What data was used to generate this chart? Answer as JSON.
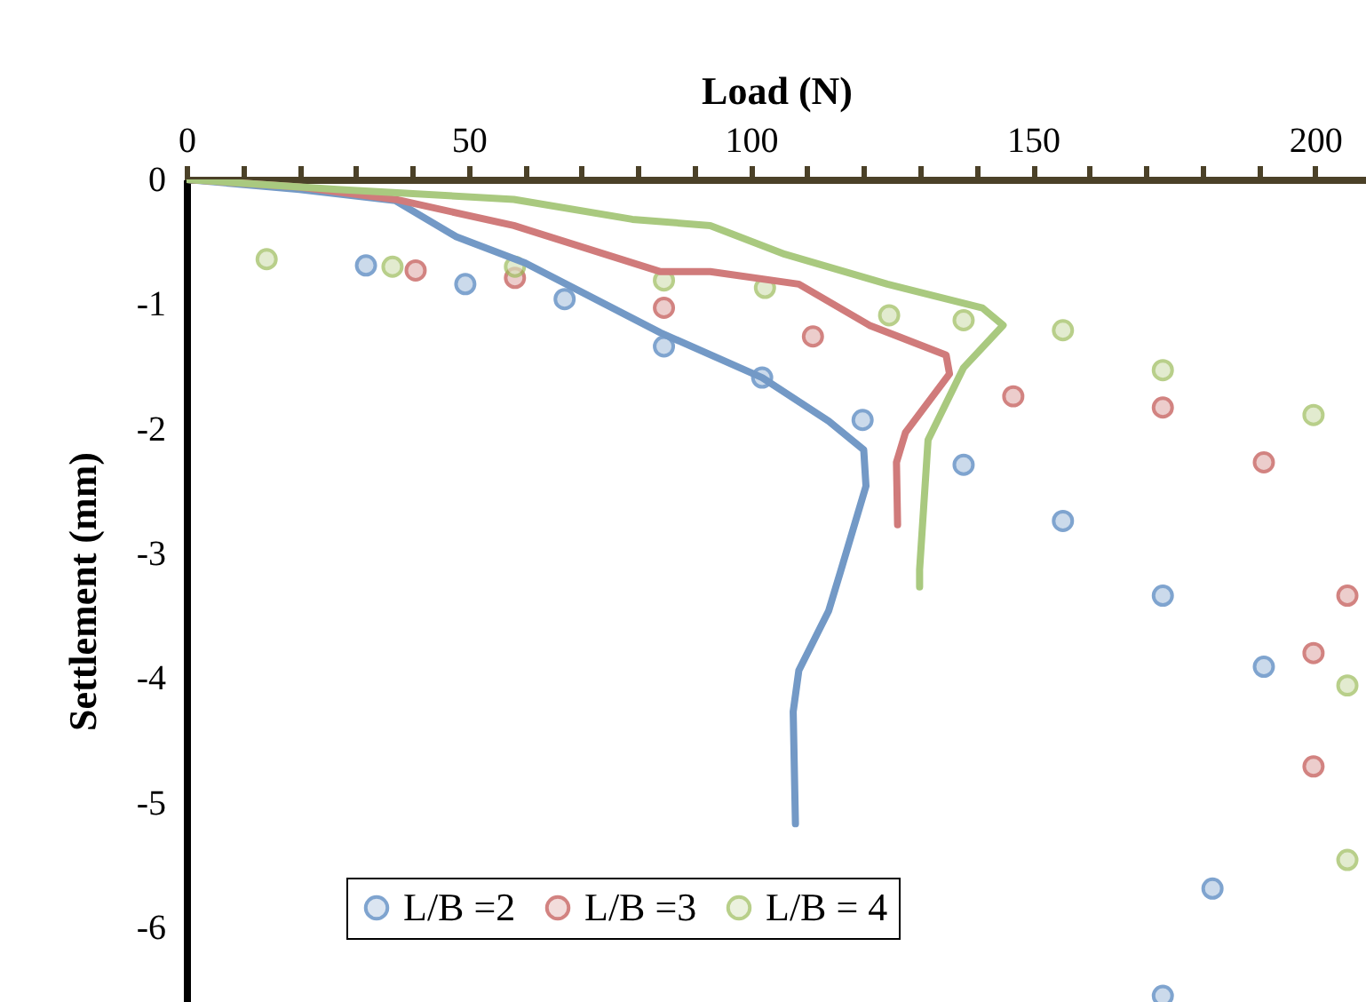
{
  "chart_data": {
    "type": "scatter",
    "xlabel": "Load (N)",
    "ylabel": "Settlement (mm)",
    "xlim": [
      0,
      209
    ],
    "ylim": [
      -6.6,
      0
    ],
    "xticks": [
      0,
      {
        "value": 10,
        "label": null
      },
      {
        "value": 20,
        "label": null
      },
      {
        "value": 30,
        "label": null
      },
      {
        "value": 40,
        "label": null
      },
      50,
      {
        "value": 60,
        "label": null
      },
      {
        "value": 70,
        "label": null
      },
      {
        "value": 80,
        "label": null
      },
      {
        "value": 90,
        "label": null
      },
      100,
      {
        "value": 110,
        "label": null
      },
      {
        "value": 120,
        "label": null
      },
      {
        "value": 130,
        "label": null
      },
      {
        "value": 140,
        "label": null
      },
      150,
      {
        "value": 160,
        "label": null
      },
      {
        "value": 170,
        "label": null
      },
      {
        "value": 180,
        "label": null
      },
      {
        "value": 190,
        "label": null
      },
      200
    ],
    "yticks": [
      0,
      -1,
      -2,
      -3,
      -4,
      -5,
      -6
    ],
    "grid": false,
    "legend": "bottom",
    "marker": "circle",
    "line_style": "solid",
    "series": [
      {
        "name": "L/B =2",
        "color": "#4a7ebb",
        "x": [
          31.8,
          49.4,
          67,
          84.6,
          102,
          119.8,
          137.7,
          155.3,
          173,
          190.9,
          181.8,
          173
        ],
        "values": [
          -0.69,
          -0.84,
          -0.96,
          -1.34,
          -1.59,
          -1.93,
          -2.29,
          -2.74,
          -3.34,
          -3.91,
          -5.69,
          -6.55
        ]
      },
      {
        "name": "L/B =3",
        "color": "#c0504d",
        "x": [
          40.6,
          58.2,
          84.6,
          111,
          146.5,
          173,
          190.9,
          205.7,
          199.7,
          199.7
        ],
        "values": [
          -0.73,
          -0.79,
          -1.03,
          -1.26,
          -1.74,
          -1.83,
          -2.27,
          -3.34,
          -3.8,
          -4.71
        ]
      },
      {
        "name": "L/B = 4",
        "color": "#9bbb59",
        "x": [
          14.2,
          36.5,
          58.2,
          84.6,
          102.5,
          124.5,
          137.7,
          155.3,
          173,
          199.7,
          205.7,
          205.7
        ],
        "values": [
          -0.64,
          -0.7,
          -0.7,
          -0.81,
          -0.87,
          -1.09,
          -1.13,
          -1.21,
          -1.53,
          -1.89,
          -4.06,
          -5.46
        ]
      },
      {
        "type": "line",
        "marker": "none",
        "color": "#7399c6",
        "x": [
          0,
          20,
          37,
          47.8,
          60,
          84,
          102,
          113.8,
          120,
          120.4,
          116,
          113.8,
          108.5,
          107.5,
          107.9
        ],
        "values": [
          0,
          -0.08,
          -0.17,
          -0.46,
          -0.67,
          -1.23,
          -1.59,
          -1.94,
          -2.17,
          -2.46,
          -3.13,
          -3.46,
          -3.94,
          -4.27,
          -5.17
        ]
      },
      {
        "type": "line",
        "marker": "none",
        "color": "#d07b7b",
        "x": [
          0,
          20,
          37,
          58,
          84,
          92.8,
          108.5,
          121,
          134.6,
          135.2,
          127.4,
          125.8,
          126
        ],
        "values": [
          0,
          -0.06,
          -0.16,
          -0.37,
          -0.74,
          -0.74,
          -0.84,
          -1.17,
          -1.41,
          -1.56,
          -2.03,
          -2.27,
          -2.77
        ]
      },
      {
        "type": "line",
        "marker": "none",
        "color": "#a9c97f",
        "x": [
          0,
          26.7,
          58,
          79,
          92.8,
          106,
          124.2,
          141,
          144.7,
          137.7,
          131.4,
          129.9,
          129.9
        ],
        "values": [
          0,
          -0.08,
          -0.16,
          -0.32,
          -0.37,
          -0.6,
          -0.84,
          -1.03,
          -1.17,
          -1.51,
          -2.09,
          -3.13,
          -3.27
        ]
      }
    ]
  }
}
